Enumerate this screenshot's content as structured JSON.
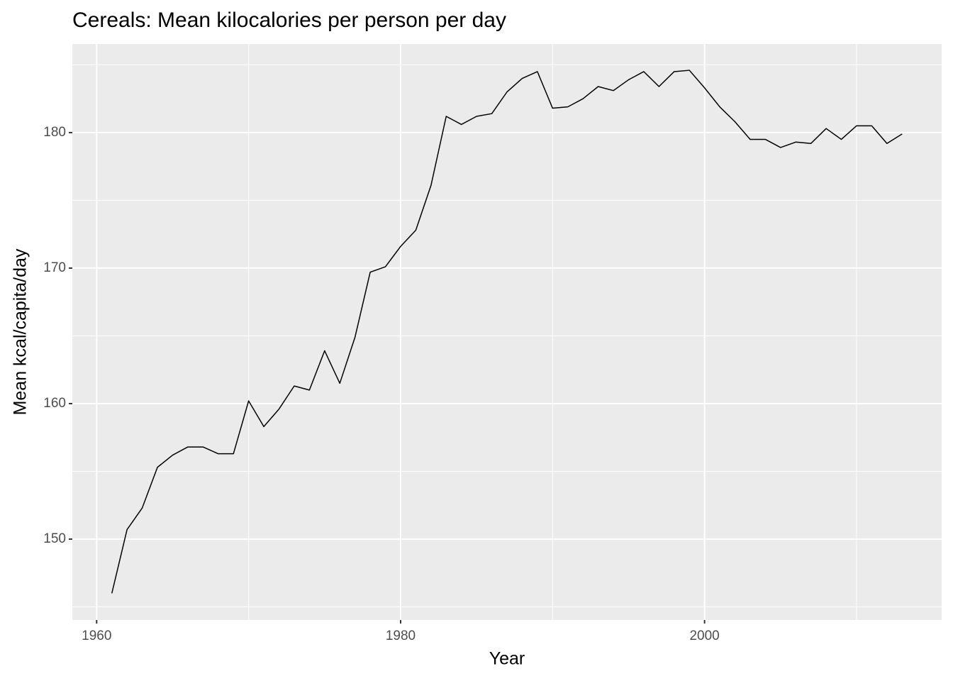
{
  "chart_data": {
    "type": "line",
    "title": "Cereals: Mean kilocalories per person per day",
    "x_label": "Year",
    "y_label": "Mean kcal/capita/day",
    "x": [
      1961,
      1962,
      1963,
      1964,
      1965,
      1966,
      1967,
      1968,
      1969,
      1970,
      1971,
      1972,
      1973,
      1974,
      1975,
      1976,
      1977,
      1978,
      1979,
      1980,
      1981,
      1982,
      1983,
      1984,
      1985,
      1986,
      1987,
      1988,
      1989,
      1990,
      1991,
      1992,
      1993,
      1994,
      1995,
      1996,
      1997,
      1998,
      1999,
      2000,
      2001,
      2002,
      2003,
      2004,
      2005,
      2006,
      2007,
      2008,
      2009,
      2010,
      2011,
      2012,
      2013
    ],
    "series": [
      {
        "color": "#000000",
        "values": [
          146.0,
          150.7,
          152.3,
          155.3,
          156.2,
          156.8,
          156.8,
          156.3,
          156.3,
          160.2,
          158.3,
          159.6,
          161.3,
          161.0,
          163.9,
          161.5,
          164.9,
          169.7,
          170.1,
          171.6,
          172.8,
          176.1,
          181.2,
          180.6,
          181.2,
          181.4,
          183.0,
          184.0,
          184.5,
          181.8,
          181.9,
          182.5,
          183.4,
          183.1,
          183.9,
          184.5,
          183.4,
          184.5,
          184.6,
          183.3,
          181.9,
          180.8,
          179.5,
          179.5,
          178.9,
          179.3,
          179.2,
          180.3,
          179.5,
          180.5,
          180.5,
          179.2,
          179.9
        ]
      }
    ],
    "xlim": [
      1958.4,
      2015.6
    ],
    "ylim": [
      144.03,
      186.54
    ],
    "xticks": [
      1960,
      1980,
      2000
    ],
    "yticks": [
      150,
      160,
      170,
      180
    ],
    "x_minor_ticks": [
      1970,
      1990,
      2010
    ],
    "y_minor_ticks": [
      145,
      155,
      165,
      175,
      185
    ],
    "grid": true,
    "panel_color": "#ebebeb"
  }
}
